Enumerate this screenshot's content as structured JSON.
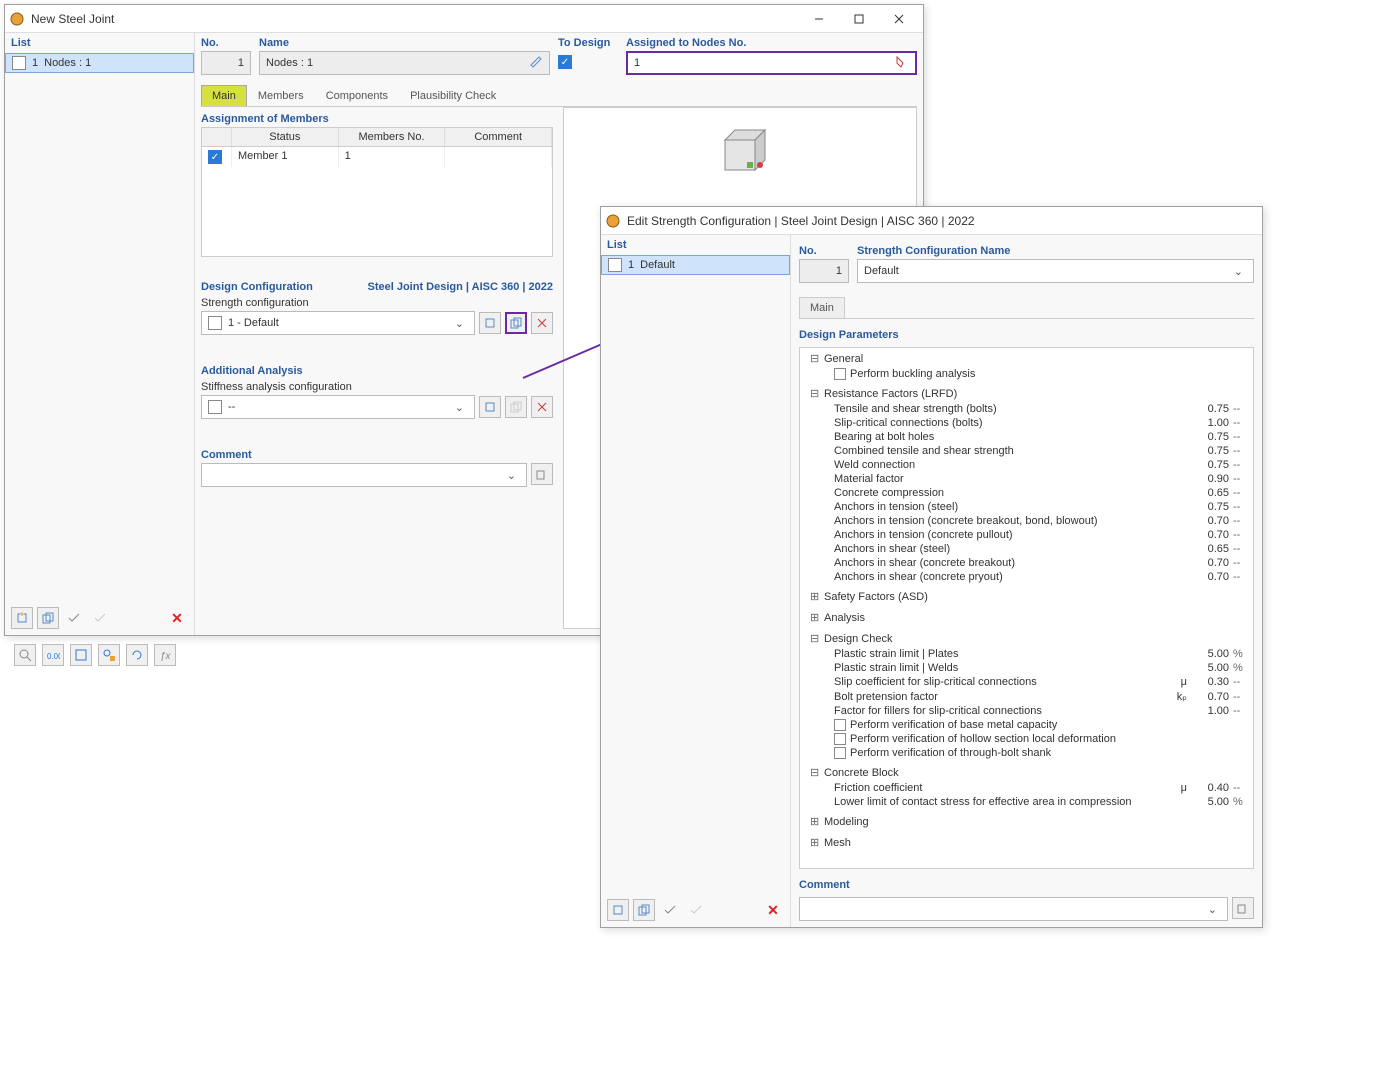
{
  "colors": {
    "accent_blue": "#2a5a9a",
    "highlight_purple": "#6a2aa8",
    "tab_active": "#d6e040",
    "selection": "#cfe3fb",
    "danger": "#e02020"
  },
  "win1": {
    "title": "New Steel Joint",
    "list_label": "List",
    "list_item": {
      "no": "1",
      "name": "Nodes : 1"
    },
    "no_label": "No.",
    "no_value": "1",
    "name_label": "Name",
    "name_value": "Nodes : 1",
    "to_design_label": "To Design",
    "assigned_label": "Assigned to Nodes No.",
    "assigned_value": "1",
    "tabs": {
      "main": "Main",
      "members": "Members",
      "components": "Components",
      "plausibility": "Plausibility Check"
    },
    "assignment_head": "Assignment of Members",
    "assignment_cols": {
      "status": "Status",
      "members_no": "Members No.",
      "comment": "Comment"
    },
    "assignment_row": {
      "status": "Member 1",
      "members_no": "1",
      "comment": ""
    },
    "design_config_head": "Design Configuration",
    "design_config_right": "Steel Joint Design | AISC 360 | 2022",
    "strength_config_label": "Strength configuration",
    "strength_config_value": "1 - Default",
    "additional_head": "Additional Analysis",
    "stiffness_label": "Stiffness analysis configuration",
    "stiffness_value": "--",
    "comment_label": "Comment"
  },
  "win2": {
    "title": "Edit Strength Configuration | Steel Joint Design | AISC 360 | 2022",
    "list_label": "List",
    "list_item": {
      "no": "1",
      "name": "Default"
    },
    "no_label": "No.",
    "no_value": "1",
    "name_label": "Strength Configuration Name",
    "name_value": "Default",
    "tab_main": "Main",
    "design_params_head": "Design Parameters",
    "groups": {
      "general": {
        "label": "General",
        "items": [
          {
            "name": "Perform buckling analysis",
            "checkbox": true
          }
        ]
      },
      "resistance": {
        "label": "Resistance Factors (LRFD)",
        "items": [
          {
            "name": "Tensile and shear strength (bolts)",
            "val": "0.75",
            "unit": "--"
          },
          {
            "name": "Slip-critical connections (bolts)",
            "val": "1.00",
            "unit": "--"
          },
          {
            "name": "Bearing at bolt holes",
            "val": "0.75",
            "unit": "--"
          },
          {
            "name": "Combined tensile and shear strength",
            "val": "0.75",
            "unit": "--"
          },
          {
            "name": "Weld connection",
            "val": "0.75",
            "unit": "--"
          },
          {
            "name": "Material factor",
            "val": "0.90",
            "unit": "--"
          },
          {
            "name": "Concrete compression",
            "val": "0.65",
            "unit": "--"
          },
          {
            "name": "Anchors in tension (steel)",
            "val": "0.75",
            "unit": "--"
          },
          {
            "name": "Anchors in tension (concrete breakout, bond, blowout)",
            "val": "0.70",
            "unit": "--"
          },
          {
            "name": "Anchors in tension (concrete pullout)",
            "val": "0.70",
            "unit": "--"
          },
          {
            "name": "Anchors in shear (steel)",
            "val": "0.65",
            "unit": "--"
          },
          {
            "name": "Anchors in shear (concrete breakout)",
            "val": "0.70",
            "unit": "--"
          },
          {
            "name": "Anchors in shear (concrete pryout)",
            "val": "0.70",
            "unit": "--"
          }
        ]
      },
      "safety": {
        "label": "Safety Factors (ASD)"
      },
      "analysis": {
        "label": "Analysis"
      },
      "design_check": {
        "label": "Design Check",
        "items": [
          {
            "name": "Plastic strain limit | Plates",
            "val": "5.00",
            "unit": "%"
          },
          {
            "name": "Plastic strain limit | Welds",
            "val": "5.00",
            "unit": "%"
          },
          {
            "name": "Slip coefficient for slip-critical connections",
            "sym": "μ",
            "val": "0.30",
            "unit": "--"
          },
          {
            "name": "Bolt pretension factor",
            "sym": "kₚ",
            "val": "0.70",
            "unit": "--"
          },
          {
            "name": "Factor for fillers for slip-critical connections",
            "val": "1.00",
            "unit": "--"
          },
          {
            "name": "Perform verification of base metal capacity",
            "checkbox": true
          },
          {
            "name": "Perform verification of hollow section local deformation",
            "checkbox": true
          },
          {
            "name": "Perform verification of through-bolt shank",
            "checkbox": true
          }
        ]
      },
      "concrete": {
        "label": "Concrete Block",
        "items": [
          {
            "name": "Friction coefficient",
            "sym": "μ",
            "val": "0.40",
            "unit": "--"
          },
          {
            "name": "Lower limit of contact stress for effective area in compression",
            "val": "5.00",
            "unit": "%"
          }
        ]
      },
      "modeling": {
        "label": "Modeling"
      },
      "mesh": {
        "label": "Mesh"
      }
    },
    "comment_label": "Comment"
  }
}
